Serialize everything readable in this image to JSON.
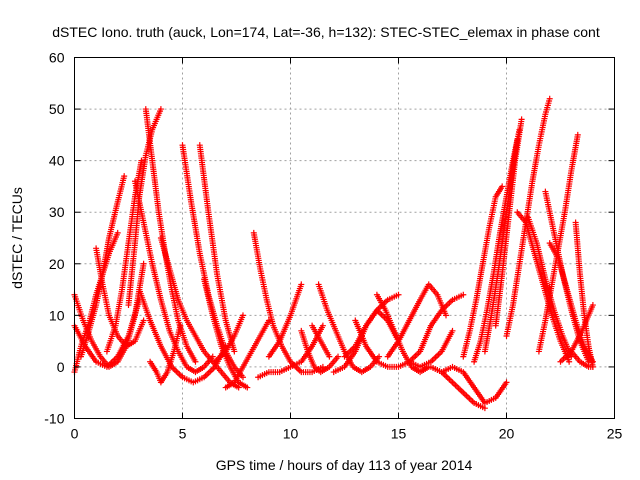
{
  "chart_data": {
    "type": "scatter",
    "title": "dSTEC Iono. truth (auck, Lon=174, Lat=-36, h=132): STEC-STEC_elemax in phase cont",
    "xlabel": "GPS time / hours of day 113 of year 2014",
    "ylabel": "dSTEC  / TECUs",
    "xlim": [
      0,
      25
    ],
    "ylim": [
      -10,
      60
    ],
    "xticks": [
      0,
      5,
      10,
      15,
      20,
      25
    ],
    "yticks": [
      -10,
      0,
      10,
      20,
      30,
      40,
      50,
      60
    ],
    "grid": true,
    "marker": "+",
    "color": "#ff0000",
    "series": [
      {
        "x": [
          0.0,
          0.4,
          0.8,
          1.2,
          1.6,
          2.0,
          2.4,
          2.8,
          3.2
        ],
        "y": [
          14,
          9,
          5,
          2,
          0,
          1,
          4,
          10,
          20
        ]
      },
      {
        "x": [
          0.0,
          0.5,
          1.0,
          1.5,
          2.0,
          2.5,
          3.0
        ],
        "y": [
          8,
          4,
          1,
          0,
          2,
          6,
          13
        ]
      },
      {
        "x": [
          0.0,
          0.3,
          0.7,
          1.0,
          1.3,
          1.6,
          2.0
        ],
        "y": [
          -1,
          4,
          9,
          14,
          18,
          22,
          26
        ]
      },
      {
        "x": [
          0.3,
          0.6,
          1.0,
          1.3,
          1.6,
          2.0,
          2.3
        ],
        "y": [
          2,
          6,
          12,
          18,
          25,
          32,
          37
        ]
      },
      {
        "x": [
          1.0,
          1.3,
          1.6,
          2.0,
          2.4,
          2.8,
          3.2
        ],
        "y": [
          23,
          16,
          10,
          6,
          4,
          5,
          9
        ]
      },
      {
        "x": [
          1.5,
          1.9,
          2.2,
          2.5,
          2.8,
          3.1
        ],
        "y": [
          3,
          8,
          15,
          24,
          33,
          40
        ]
      },
      {
        "x": [
          2.5,
          2.8,
          3.0,
          3.3,
          3.6,
          4.0
        ],
        "y": [
          12,
          24,
          33,
          41,
          46,
          50
        ]
      },
      {
        "x": [
          3.3,
          3.6,
          3.9,
          4.2,
          4.5,
          4.8,
          5.2,
          5.6
        ],
        "y": [
          50,
          40,
          30,
          22,
          15,
          9,
          4,
          1
        ]
      },
      {
        "x": [
          2.8,
          3.2,
          3.6,
          4.0,
          4.4,
          4.8,
          5.2,
          5.6,
          6.0,
          6.4
        ],
        "y": [
          36,
          28,
          20,
          13,
          7,
          3,
          0,
          -1,
          0,
          2
        ]
      },
      {
        "x": [
          3.0,
          3.5,
          4.0,
          4.5,
          5.0,
          5.5,
          6.0,
          6.5,
          7.0
        ],
        "y": [
          15,
          9,
          4,
          0,
          -2,
          -3,
          -2,
          0,
          4
        ]
      },
      {
        "x": [
          3.5,
          3.8,
          4.0,
          4.3,
          4.6,
          4.9
        ],
        "y": [
          1,
          -1,
          -3,
          -1,
          3,
          8
        ]
      },
      {
        "x": [
          5.0,
          5.4,
          5.8,
          6.2,
          6.6,
          7.0,
          7.4,
          7.8
        ],
        "y": [
          43,
          32,
          22,
          14,
          8,
          3,
          0,
          -2
        ]
      },
      {
        "x": [
          5.8,
          6.2,
          6.6,
          7.0,
          7.4
        ],
        "y": [
          43,
          30,
          18,
          9,
          3
        ]
      },
      {
        "x": [
          4.0,
          4.4,
          4.8,
          5.2,
          5.6,
          6.0,
          6.4,
          6.8,
          7.2,
          7.6
        ],
        "y": [
          25,
          19,
          13,
          9,
          6,
          3,
          1,
          -1,
          -3,
          -4
        ]
      },
      {
        "x": [
          6.0,
          6.4,
          6.8,
          7.2,
          7.6,
          8.0
        ],
        "y": [
          17,
          10,
          4,
          0,
          -3,
          -4
        ]
      },
      {
        "x": [
          6.5,
          7.0,
          7.4,
          7.8
        ],
        "y": [
          1,
          3,
          6,
          10
        ]
      },
      {
        "x": [
          7.0,
          7.4,
          7.8,
          8.2,
          8.6,
          9.0
        ],
        "y": [
          -4,
          -3,
          0,
          3,
          6,
          9
        ]
      },
      {
        "x": [
          8.3,
          8.6,
          8.9,
          9.2,
          9.6,
          10.0,
          10.5,
          11.0,
          11.5
        ],
        "y": [
          26,
          19,
          13,
          8,
          4,
          1,
          -1,
          -1,
          0
        ]
      },
      {
        "x": [
          8.5,
          9.0,
          9.5,
          10.0,
          10.5,
          11.0,
          11.5
        ],
        "y": [
          -2,
          -1,
          -1,
          0,
          1,
          4,
          8
        ]
      },
      {
        "x": [
          9.0,
          9.5,
          10.0,
          10.5
        ],
        "y": [
          2,
          5,
          10,
          16
        ]
      },
      {
        "x": [
          10.5,
          10.8,
          11.1,
          11.4,
          11.8,
          12.2
        ],
        "y": [
          7,
          3,
          0,
          -1,
          0,
          2
        ]
      },
      {
        "x": [
          11.0,
          11.4,
          11.8
        ],
        "y": [
          8,
          5,
          2
        ]
      },
      {
        "x": [
          11.3,
          11.7,
          12.1,
          12.5,
          12.9,
          13.3,
          13.7,
          14.1
        ],
        "y": [
          16,
          11,
          7,
          3,
          0,
          -1,
          0,
          2
        ]
      },
      {
        "x": [
          12.0,
          12.5,
          13.0,
          13.5,
          14.0,
          14.5,
          15.0
        ],
        "y": [
          -1,
          0,
          3,
          8,
          11,
          13,
          14
        ]
      },
      {
        "x": [
          12.5,
          13.0,
          13.5,
          14.0,
          14.5,
          15.0
        ],
        "y": [
          2,
          4,
          8,
          11,
          9,
          5
        ]
      },
      {
        "x": [
          13.0,
          13.5,
          14.0,
          14.5,
          15.0,
          15.5,
          16.0,
          16.5
        ],
        "y": [
          9,
          4,
          1,
          0,
          0,
          1,
          3,
          8
        ]
      },
      {
        "x": [
          14.0,
          14.4,
          14.8,
          15.2,
          15.6,
          16.0,
          16.4
        ],
        "y": [
          14,
          11,
          7,
          3,
          0,
          -1,
          0
        ]
      },
      {
        "x": [
          14.5,
          15.0,
          15.5,
          16.0,
          16.4,
          16.8,
          17.2
        ],
        "y": [
          2,
          5,
          9,
          13,
          16,
          14,
          10
        ]
      },
      {
        "x": [
          15.5,
          16.0,
          16.5,
          17.0,
          17.5
        ],
        "y": [
          1,
          0,
          1,
          3,
          7
        ]
      },
      {
        "x": [
          16.5,
          17.0,
          17.5,
          18.0,
          18.5,
          19.0
        ],
        "y": [
          0,
          -1,
          -3,
          -5,
          -7,
          -8
        ]
      },
      {
        "x": [
          16.5,
          17.0,
          17.5,
          18.0
        ],
        "y": [
          8,
          11,
          13,
          14
        ]
      },
      {
        "x": [
          17.0,
          17.5,
          18.0,
          18.5,
          19.0,
          19.5,
          20.0
        ],
        "y": [
          -1,
          0,
          -1,
          -4,
          -7,
          -6,
          -3
        ]
      },
      {
        "x": [
          18.0,
          18.3,
          18.6,
          18.9,
          19.2,
          19.5,
          19.8
        ],
        "y": [
          2,
          7,
          13,
          20,
          27,
          33,
          35
        ]
      },
      {
        "x": [
          18.5,
          18.8,
          19.1,
          19.4,
          19.7,
          20.0,
          20.3,
          20.6
        ],
        "y": [
          1,
          5,
          11,
          18,
          26,
          33,
          40,
          46
        ]
      },
      {
        "x": [
          19.0,
          19.3,
          19.6,
          19.9,
          20.2,
          20.5
        ],
        "y": [
          3,
          10,
          18,
          27,
          36,
          44
        ]
      },
      {
        "x": [
          19.5,
          19.8,
          20.1,
          20.4,
          20.7
        ],
        "y": [
          8,
          18,
          29,
          40,
          48
        ]
      },
      {
        "x": [
          20.0,
          20.3,
          20.6,
          20.9,
          21.2,
          21.5,
          21.8,
          22.0
        ],
        "y": [
          6,
          12,
          20,
          28,
          36,
          43,
          49,
          52
        ]
      },
      {
        "x": [
          20.5,
          20.9,
          21.3,
          21.7,
          22.1,
          22.5,
          22.9
        ],
        "y": [
          30,
          28,
          22,
          16,
          10,
          5,
          1
        ]
      },
      {
        "x": [
          21.0,
          21.4,
          21.8,
          22.2,
          22.6,
          23.0
        ],
        "y": [
          29,
          24,
          17,
          11,
          6,
          2
        ]
      },
      {
        "x": [
          21.8,
          22.2,
          22.6,
          23.0,
          23.4,
          23.8
        ],
        "y": [
          34,
          26,
          18,
          11,
          5,
          1
        ]
      },
      {
        "x": [
          21.5,
          21.8,
          22.1,
          22.4,
          22.7,
          23.0,
          23.3
        ],
        "y": [
          3,
          9,
          16,
          23,
          30,
          38,
          45
        ]
      },
      {
        "x": [
          22.0,
          22.4,
          22.8,
          23.2,
          23.6,
          24.0
        ],
        "y": [
          24,
          21,
          15,
          9,
          4,
          1
        ]
      },
      {
        "x": [
          23.2,
          23.4,
          23.6,
          23.8,
          24.0
        ],
        "y": [
          28,
          18,
          10,
          4,
          0
        ]
      },
      {
        "x": [
          22.5,
          23.0,
          23.5,
          24.0
        ],
        "y": [
          1,
          3,
          7,
          12
        ]
      },
      {
        "x": [
          23.0,
          23.4,
          23.8,
          24.0
        ],
        "y": [
          3,
          1,
          0,
          0
        ]
      }
    ]
  }
}
